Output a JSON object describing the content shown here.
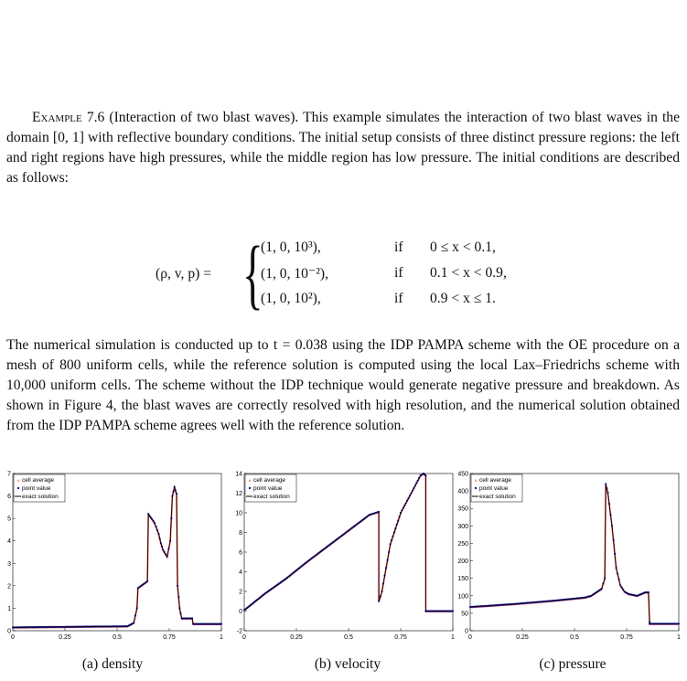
{
  "example": {
    "label": "Example 7.6",
    "title": "(Interaction of two blast waves).",
    "intro": "This example simulates the interaction of two blast waves in the domain [0, 1] with reflective boundary conditions. The initial setup consists of three distinct pressure regions: the left and right regions have high pressures, while the middle region has low pressure. The initial conditions are described as follows:"
  },
  "equation": {
    "lhs": "(ρ, v, p) =",
    "cases": [
      {
        "value": "(1,  0,  10³),",
        "if": "if",
        "condition": "0 ≤ x < 0.1,"
      },
      {
        "value": "(1,  0,  10⁻²),",
        "if": "if",
        "condition": "0.1 < x < 0.9,"
      },
      {
        "value": "(1,  0,  10²),",
        "if": "if",
        "condition": "0.9 < x ≤ 1."
      }
    ]
  },
  "paragraph2": "The numerical simulation is conducted up to t = 0.038 using the IDP PAMPA scheme with the OE procedure on a mesh of 800 uniform cells, while the reference solution is computed using the local Lax–Friedrichs scheme with 10,000 uniform cells. The scheme without the IDP technique would generate negative pressure and breakdown. As shown in Figure 4, the blast waves are correctly resolved with high resolution, and the numerical solution obtained from the IDP PAMPA scheme agrees well with the reference solution.",
  "legend": [
    "cell average",
    "point value",
    "exact solution"
  ],
  "colors": {
    "cell_average": "#e8423c",
    "point_value": "#1a1aa8",
    "exact": "#000000"
  },
  "chart_data": [
    {
      "type": "line",
      "caption": "(a) density",
      "xlim": [
        0,
        1
      ],
      "ylim": [
        0,
        7
      ],
      "xticks": [
        "0",
        "0.25",
        "0.5",
        "0.75",
        "1"
      ],
      "yticks": [
        "0",
        "1",
        "2",
        "3",
        "4",
        "5",
        "6",
        "7"
      ],
      "series": [
        {
          "name": "exact solution",
          "x": [
            0,
            0.55,
            0.58,
            0.595,
            0.6,
            0.63,
            0.645,
            0.65,
            0.68,
            0.7,
            0.71,
            0.72,
            0.74,
            0.755,
            0.765,
            0.775,
            0.785,
            0.79,
            0.8,
            0.81,
            0.82,
            0.86,
            0.865,
            1
          ],
          "y": [
            0.15,
            0.2,
            0.35,
            1.0,
            1.9,
            2.1,
            2.2,
            5.2,
            4.8,
            4.3,
            3.9,
            3.6,
            3.3,
            4.0,
            6.0,
            6.4,
            6.1,
            2.0,
            1.0,
            0.55,
            0.55,
            0.55,
            0.3,
            0.3
          ]
        }
      ]
    },
    {
      "type": "line",
      "caption": "(b) velocity",
      "xlim": [
        0,
        1
      ],
      "ylim": [
        -2,
        14
      ],
      "xticks": [
        "0",
        "0.25",
        "0.5",
        "0.75",
        "1"
      ],
      "yticks": [
        "-2",
        "0",
        "2",
        "4",
        "6",
        "8",
        "10",
        "12",
        "14"
      ],
      "series": [
        {
          "name": "exact solution",
          "x": [
            0,
            0.1,
            0.2,
            0.3,
            0.4,
            0.5,
            0.55,
            0.6,
            0.645,
            0.645,
            0.66,
            0.7,
            0.75,
            0.8,
            0.845,
            0.86,
            0.87,
            0.87,
            0.9,
            1
          ],
          "y": [
            0.1,
            1.8,
            3.3,
            5.0,
            6.6,
            8.2,
            9.0,
            9.8,
            10.1,
            1.0,
            2.0,
            6.8,
            10.0,
            12.0,
            13.8,
            14.0,
            13.8,
            0,
            0,
            0
          ]
        }
      ]
    },
    {
      "type": "line",
      "caption": "(c) pressure",
      "xlim": [
        0,
        1
      ],
      "ylim": [
        0,
        450
      ],
      "xticks": [
        "0",
        "0.25",
        "0.5",
        "0.75",
        "1"
      ],
      "yticks": [
        "0",
        "50",
        "100",
        "150",
        "200",
        "250",
        "300",
        "350",
        "400",
        "450"
      ],
      "series": [
        {
          "name": "exact solution",
          "x": [
            0,
            0.2,
            0.4,
            0.55,
            0.58,
            0.63,
            0.645,
            0.65,
            0.66,
            0.68,
            0.7,
            0.72,
            0.74,
            0.76,
            0.8,
            0.84,
            0.855,
            0.86,
            0.86,
            1
          ],
          "y": [
            68,
            76,
            86,
            95,
            100,
            120,
            150,
            420,
            395,
            300,
            180,
            130,
            112,
            105,
            100,
            110,
            110,
            25,
            20,
            20
          ]
        }
      ]
    }
  ]
}
